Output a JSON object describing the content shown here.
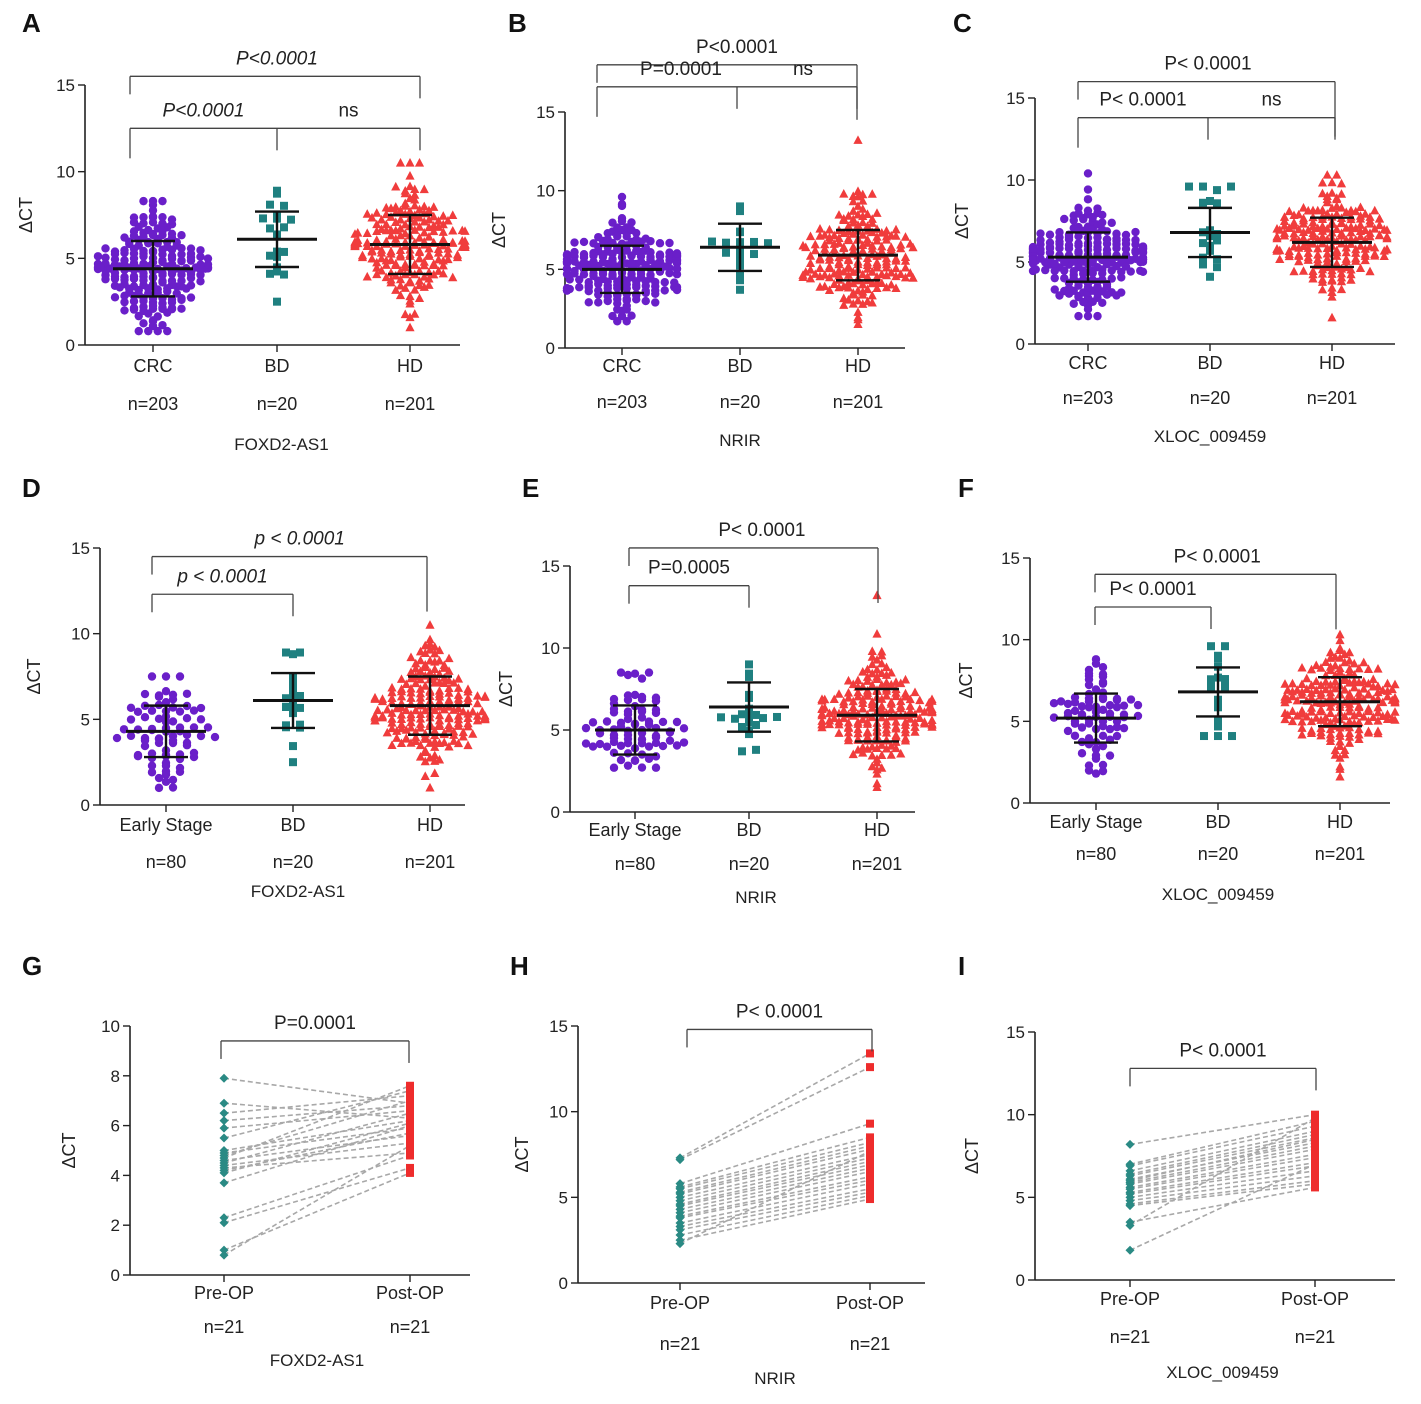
{
  "colors": {
    "crc": "#6a1fc9",
    "bd": "#1f8080",
    "hd": "#f03c3c",
    "pre": "#2a8a84",
    "post": "#ee2c2c",
    "line": "#a8a8a8",
    "axis": "#222222"
  },
  "chart_data": [
    {
      "id": "A",
      "type": "scatter",
      "letter": "A",
      "gene": "FOXD2-AS1",
      "ylabel": "ΔCT",
      "ylim": [
        0,
        15
      ],
      "yticks": [
        0,
        5,
        10,
        15
      ],
      "categories": [
        "CRC",
        "BD",
        "HD"
      ],
      "ns": [
        "n=203",
        "n=20",
        "n=201"
      ],
      "groups": [
        {
          "name": "CRC",
          "n": 203,
          "mean": 4.4,
          "sd": 1.6,
          "min": 0.8,
          "max": 8.3,
          "marker": "circle",
          "color": "#6a1fc9"
        },
        {
          "name": "BD",
          "n": 20,
          "mean": 6.1,
          "sd": 1.6,
          "min": 2.5,
          "max": 8.9,
          "marker": "square",
          "color": "#1f8080"
        },
        {
          "name": "HD",
          "n": 201,
          "mean": 5.8,
          "sd": 1.7,
          "min": 1.0,
          "max": 10.5,
          "marker": "triangle",
          "color": "#f03c3c"
        }
      ],
      "brackets": [
        {
          "from": 0,
          "to": 2,
          "y": 15.5,
          "label": "P<0.0001",
          "italicP": true,
          "labelPos": 1
        },
        {
          "from": 0,
          "to": 2,
          "mid": 1,
          "y": 12.5,
          "label": "P<0.0001",
          "italicP": true,
          "labelPos": 0.5,
          "label2": "ns",
          "label2Pos": 1.5,
          "style": "tee"
        }
      ]
    },
    {
      "id": "B",
      "type": "scatter",
      "letter": "B",
      "gene": "NRIR",
      "ylabel": "ΔCT",
      "ylim": [
        0,
        15
      ],
      "yticks": [
        0,
        5,
        10,
        15
      ],
      "categories": [
        "CRC",
        "BD",
        "HD"
      ],
      "ns": [
        "n=203",
        "n=20",
        "n=201"
      ],
      "groups": [
        {
          "name": "CRC",
          "n": 203,
          "mean": 5.0,
          "sd": 1.5,
          "min": 1.7,
          "max": 9.6,
          "marker": "circle",
          "color": "#6a1fc9"
        },
        {
          "name": "BD",
          "n": 20,
          "mean": 6.4,
          "sd": 1.5,
          "min": 3.7,
          "max": 9.0,
          "marker": "square",
          "color": "#1f8080"
        },
        {
          "name": "HD",
          "n": 201,
          "mean": 5.9,
          "sd": 1.6,
          "min": 1.5,
          "max": 13.2,
          "marker": "triangle",
          "color": "#f03c3c"
        }
      ],
      "brackets": [
        {
          "from": 0,
          "to": 2,
          "y": 18.0,
          "label": "P<0.0001",
          "italicP": false,
          "labelPos": 1,
          "top": true
        },
        {
          "from": 0,
          "to": 2,
          "mid": 1,
          "y": 16.6,
          "label": "P=0.0001",
          "italicP": false,
          "labelPos": 0.6,
          "label2": "ns",
          "label2Pos": 1.55,
          "style": "tee"
        }
      ]
    },
    {
      "id": "C",
      "type": "scatter",
      "letter": "C",
      "gene": "XLOC_009459",
      "ylabel": "ΔCT",
      "ylim": [
        0,
        15
      ],
      "yticks": [
        0,
        5,
        10,
        15
      ],
      "categories": [
        "CRC",
        "BD",
        "HD"
      ],
      "ns": [
        "n=203",
        "n=20",
        "n=201"
      ],
      "groups": [
        {
          "name": "CRC",
          "n": 203,
          "mean": 5.3,
          "sd": 1.5,
          "min": 1.7,
          "max": 10.4,
          "marker": "circle",
          "color": "#6a1fc9"
        },
        {
          "name": "BD",
          "n": 20,
          "mean": 6.8,
          "sd": 1.5,
          "min": 4.1,
          "max": 9.6,
          "marker": "square",
          "color": "#1f8080"
        },
        {
          "name": "HD",
          "n": 201,
          "mean": 6.2,
          "sd": 1.5,
          "min": 1.6,
          "max": 10.3,
          "marker": "triangle",
          "color": "#f03c3c"
        }
      ],
      "brackets": [
        {
          "from": 0,
          "to": 2,
          "y": 16.0,
          "label": "P< 0.0001",
          "italicP": false,
          "labelPos": 1,
          "top": true
        },
        {
          "from": 0,
          "to": 2,
          "mid": 1,
          "y": 13.8,
          "label": "P< 0.0001",
          "italicP": false,
          "labelPos": 0.5,
          "label2": "ns",
          "label2Pos": 1.5,
          "style": "tee"
        }
      ]
    },
    {
      "id": "D",
      "type": "scatter",
      "letter": "D",
      "gene": "FOXD2-AS1",
      "ylabel": "ΔCT",
      "ylim": [
        0,
        15
      ],
      "yticks": [
        0,
        5,
        10,
        15
      ],
      "categories": [
        "Early Stage",
        "BD",
        "HD"
      ],
      "ns": [
        "n=80",
        "n=20",
        "n=201"
      ],
      "groups": [
        {
          "name": "Early Stage",
          "n": 80,
          "mean": 4.3,
          "sd": 1.5,
          "min": 1.0,
          "max": 7.5,
          "marker": "circle",
          "color": "#6a1fc9"
        },
        {
          "name": "BD",
          "n": 20,
          "mean": 6.1,
          "sd": 1.6,
          "min": 2.5,
          "max": 8.9,
          "marker": "square",
          "color": "#1f8080"
        },
        {
          "name": "HD",
          "n": 201,
          "mean": 5.8,
          "sd": 1.7,
          "min": 1.0,
          "max": 10.5,
          "marker": "triangle",
          "color": "#f03c3c"
        }
      ],
      "brackets": [
        {
          "from": 0,
          "to": 2,
          "y": 14.5,
          "label": "p < 0.0001",
          "italicP": true,
          "labelPos": 1.05,
          "top": true
        },
        {
          "from": 0,
          "to": 1,
          "y": 12.3,
          "label": "p < 0.0001",
          "italicP": true,
          "labelPos": 0.5
        }
      ]
    },
    {
      "id": "E",
      "type": "scatter",
      "letter": "E",
      "gene": "NRIR",
      "ylabel": "ΔCT",
      "ylim": [
        0,
        15
      ],
      "yticks": [
        0,
        5,
        10,
        15
      ],
      "categories": [
        "Early Stage",
        "BD",
        "HD"
      ],
      "ns": [
        "n=80",
        "n=20",
        "n=201"
      ],
      "groups": [
        {
          "name": "Early Stage",
          "n": 80,
          "mean": 5.0,
          "sd": 1.5,
          "min": 2.7,
          "max": 8.5,
          "marker": "circle",
          "color": "#6a1fc9"
        },
        {
          "name": "BD",
          "n": 20,
          "mean": 6.4,
          "sd": 1.5,
          "min": 3.7,
          "max": 9.0,
          "marker": "square",
          "color": "#1f8080"
        },
        {
          "name": "HD",
          "n": 201,
          "mean": 5.9,
          "sd": 1.6,
          "min": 1.5,
          "max": 13.2,
          "marker": "triangle",
          "color": "#f03c3c"
        }
      ],
      "brackets": [
        {
          "from": 0,
          "to": 2,
          "y": 16.1,
          "label": "P< 0.0001",
          "italicP": false,
          "labelPos": 1.1,
          "top": true
        },
        {
          "from": 0,
          "to": 1,
          "y": 13.8,
          "label": "P=0.0005",
          "italicP": false,
          "labelPos": 0.5
        }
      ]
    },
    {
      "id": "F",
      "type": "scatter",
      "letter": "F",
      "gene": "XLOC_009459",
      "ylabel": "ΔCT",
      "ylim": [
        0,
        15
      ],
      "yticks": [
        0,
        5,
        10,
        15
      ],
      "categories": [
        "Early Stage",
        "BD",
        "HD"
      ],
      "ns": [
        "n=80",
        "n=20",
        "n=201"
      ],
      "groups": [
        {
          "name": "Early Stage",
          "n": 80,
          "mean": 5.2,
          "sd": 1.5,
          "min": 1.8,
          "max": 8.8,
          "marker": "circle",
          "color": "#6a1fc9"
        },
        {
          "name": "BD",
          "n": 20,
          "mean": 6.8,
          "sd": 1.5,
          "min": 4.1,
          "max": 9.6,
          "marker": "square",
          "color": "#1f8080"
        },
        {
          "name": "HD",
          "n": 201,
          "mean": 6.2,
          "sd": 1.5,
          "min": 1.6,
          "max": 10.3,
          "marker": "triangle",
          "color": "#f03c3c"
        }
      ],
      "brackets": [
        {
          "from": 0,
          "to": 2,
          "y": 14.0,
          "label": "P< 0.0001",
          "italicP": false,
          "labelPos": 1.05,
          "top": true
        },
        {
          "from": 0,
          "to": 1,
          "y": 12.0,
          "label": "P< 0.0001",
          "italicP": false,
          "labelPos": 0.5
        }
      ]
    },
    {
      "id": "G",
      "type": "line",
      "letter": "G",
      "gene": "FOXD2-AS1",
      "ylabel": "ΔCT",
      "ylim": [
        0,
        10
      ],
      "yticks": [
        0,
        2,
        4,
        6,
        8,
        10
      ],
      "categories": [
        "Pre-OP",
        "Post-OP"
      ],
      "ns": [
        "n=21",
        "n=21"
      ],
      "pre": [
        7.9,
        6.9,
        6.5,
        6.2,
        5.9,
        5.5,
        5.0,
        4.9,
        4.7,
        4.6,
        4.5,
        4.4,
        4.3,
        4.2,
        4.1,
        3.7,
        2.3,
        2.1,
        1.0,
        0.8,
        4.8
      ],
      "post": [
        6.9,
        6.3,
        7.2,
        6.8,
        6.6,
        7.4,
        6.2,
        5.9,
        7.6,
        5.6,
        6.5,
        5.3,
        4.9,
        5.7,
        6.1,
        6.0,
        4.8,
        4.3,
        4.1,
        5.2,
        7.0
      ],
      "brackets": [
        {
          "from": 0,
          "to": 1,
          "y": 9.4,
          "label": "P=0.0001",
          "italicP": false,
          "labelPos": 0.5
        }
      ]
    },
    {
      "id": "H",
      "type": "line",
      "letter": "H",
      "gene": "NRIR",
      "ylabel": "ΔCT",
      "ylim": [
        0,
        15
      ],
      "yticks": [
        0,
        5,
        10,
        15
      ],
      "categories": [
        "Pre-OP",
        "Post-OP"
      ],
      "ns": [
        "n=21",
        "n=21"
      ],
      "pre": [
        7.3,
        7.2,
        5.8,
        5.6,
        5.5,
        5.3,
        5.2,
        5.0,
        4.8,
        4.6,
        4.5,
        4.3,
        4.1,
        3.9,
        3.8,
        3.5,
        3.3,
        3.1,
        2.8,
        2.5,
        2.3
      ],
      "post": [
        13.4,
        12.6,
        9.3,
        8.5,
        8.2,
        8.0,
        7.8,
        7.5,
        7.3,
        7.1,
        6.9,
        6.7,
        6.5,
        6.2,
        6.0,
        5.8,
        5.5,
        5.3,
        5.1,
        4.9,
        7.7
      ],
      "brackets": [
        {
          "from": 0,
          "to": 1,
          "y": 14.8,
          "label": "P< 0.0001",
          "italicP": false,
          "labelPos": 0.5
        }
      ]
    },
    {
      "id": "I",
      "type": "line",
      "letter": "I",
      "gene": "XLOC_009459",
      "ylabel": "ΔCT",
      "ylim": [
        0,
        15
      ],
      "yticks": [
        0,
        5,
        10,
        15
      ],
      "categories": [
        "Pre-OP",
        "Post-OP"
      ],
      "ns": [
        "n=21",
        "n=21"
      ],
      "pre": [
        8.2,
        7.0,
        6.9,
        6.6,
        6.4,
        6.3,
        6.1,
        5.9,
        5.8,
        5.6,
        5.5,
        5.3,
        5.2,
        5.0,
        4.8,
        4.6,
        4.5,
        3.5,
        3.3,
        1.8,
        6.0
      ],
      "post": [
        10.0,
        9.6,
        9.3,
        9.0,
        8.8,
        8.6,
        8.3,
        8.1,
        7.9,
        7.6,
        7.4,
        7.1,
        6.9,
        6.6,
        6.3,
        6.0,
        5.8,
        5.6,
        9.8,
        7.0,
        8.5
      ],
      "brackets": [
        {
          "from": 0,
          "to": 1,
          "y": 12.8,
          "label": "P< 0.0001",
          "italicP": false,
          "labelPos": 0.5
        }
      ]
    }
  ]
}
